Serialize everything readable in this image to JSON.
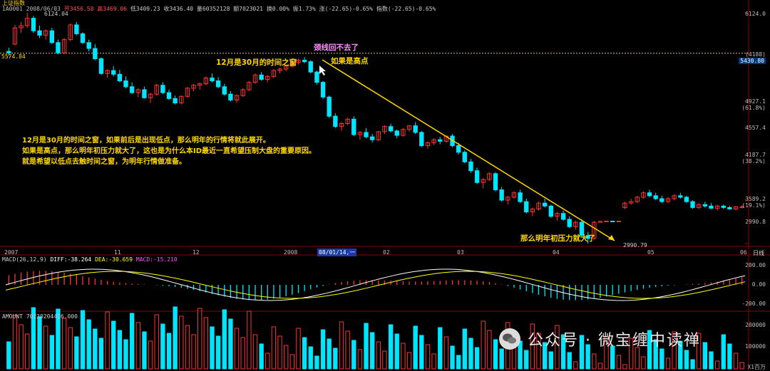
{
  "header": {
    "title": "上证指数",
    "line1": "1A0001 2008/06/03",
    "open_label": "开3456.58",
    "high_label": "高3469.06",
    "low_label": "低3409.23",
    "close_label": "收3436.40",
    "vol_label": "量60352128",
    "amount_label": "额7023021",
    "turnover_label": "换0.00%",
    "amp_label": "振1.73%",
    "change_label": "涨(-22.65)-0.65%",
    "index_label": "指数(-22.65)-0.65%"
  },
  "annotations": {
    "neckline": "颈线回不去了",
    "time_window": "12月是30月的时间之窗",
    "if_high": "如果是高点",
    "pressure": "那么明年初压力就大了",
    "note_lines": [
      "12月是30月的时间之窗，如果前后是出现低点，那么明年的行情将就此展开。",
      "如果是高点，那么明年初压力就大了，这也是为什么本ID最近一直希望压制大盘的重要原因。",
      "就是希望以低点去触时间之窗，为明年行情做准备。"
    ]
  },
  "price_axis": {
    "right_labels": [
      "6124.0",
      "(4188)",
      "5430.80",
      "4927.1",
      "(61.8%)",
      "4557.4",
      "4187.7",
      "(38.2%)",
      "3589.2",
      "(19.1%)",
      "2990.8"
    ],
    "left_label": "5574.84",
    "peak_label": "6124.04",
    "low_label": "2990.79"
  },
  "time_axis": {
    "labels": [
      "2007",
      "11",
      "12",
      "2008",
      "08/01/14,一",
      "02",
      "03",
      "04",
      "05",
      "06"
    ],
    "period": "日线"
  },
  "macd": {
    "header": "MACD(26,12,9)",
    "diff_label": "DIFF:-38.264",
    "dea_label": "DEA:-30.659",
    "macd_label": "MACD:-15.210",
    "axis": [
      "200.00",
      "0.00",
      "-200.00"
    ]
  },
  "amount": {
    "header": "AMOUNT 70230204416.000",
    "axis": [
      "200000",
      "100000"
    ],
    "unit": "X1百万"
  },
  "watermark": {
    "text": "公众号 · 微宝缠中读禅"
  },
  "colors": {
    "up": "#ff3232",
    "down": "#00e5ff",
    "dea": "#ffff00",
    "diff": "#ffffff",
    "annotation": "#ffd700",
    "trendline": "#ffd700"
  },
  "chart_data": {
    "type": "candlestick",
    "title": "上证指数",
    "period": "日线",
    "ylim": [
      2990.8,
      6124.0
    ],
    "key_levels": [
      6124.0,
      5430.8,
      4927.1,
      4557.4,
      4187.7,
      3589.2,
      2990.8
    ],
    "dashed_level": 5574.84,
    "peak": 6124.04,
    "low": 2990.79,
    "x_labels": [
      "2007",
      "11",
      "12",
      "2008",
      "08/01/14,一",
      "02",
      "03",
      "04",
      "05",
      "06"
    ],
    "ohlc_estimated": [
      [
        5600,
        5650,
        5540,
        5580
      ],
      [
        5700,
        5960,
        5680,
        5920
      ],
      [
        5920,
        6000,
        5850,
        5950
      ],
      [
        5950,
        6124,
        5920,
        6050
      ],
      [
        6050,
        6080,
        5850,
        5880
      ],
      [
        5880,
        5950,
        5780,
        5820
      ],
      [
        5820,
        5900,
        5760,
        5880
      ],
      [
        5880,
        5920,
        5700,
        5720
      ],
      [
        5720,
        5760,
        5560,
        5580
      ],
      [
        5580,
        5780,
        5560,
        5760
      ],
      [
        5760,
        5980,
        5740,
        5960
      ],
      [
        5960,
        6000,
        5820,
        5840
      ],
      [
        5840,
        5860,
        5700,
        5720
      ],
      [
        5720,
        5760,
        5600,
        5640
      ],
      [
        5640,
        5700,
        5480,
        5500
      ],
      [
        5500,
        5520,
        5280,
        5300
      ],
      [
        5300,
        5360,
        5240,
        5340
      ],
      [
        5340,
        5400,
        5260,
        5290
      ],
      [
        5290,
        5350,
        5180,
        5200
      ],
      [
        5200,
        5260,
        5100,
        5120
      ],
      [
        5120,
        5180,
        5020,
        5040
      ],
      [
        5040,
        5100,
        4980,
        5080
      ],
      [
        5080,
        5120,
        4960,
        4970
      ],
      [
        4970,
        5040,
        4900,
        5020
      ],
      [
        5020,
        5160,
        5000,
        5140
      ],
      [
        5140,
        5180,
        5020,
        5040
      ],
      [
        5040,
        5080,
        4940,
        4960
      ],
      [
        4960,
        5000,
        4880,
        4900
      ],
      [
        4900,
        5000,
        4880,
        4990
      ],
      [
        4990,
        5120,
        4970,
        5100
      ],
      [
        5100,
        5160,
        5060,
        5140
      ],
      [
        5140,
        5180,
        5080,
        5160
      ],
      [
        5160,
        5260,
        5140,
        5240
      ],
      [
        5240,
        5300,
        5180,
        5200
      ],
      [
        5200,
        5250,
        5100,
        5120
      ],
      [
        5120,
        5160,
        5000,
        5020
      ],
      [
        5020,
        5060,
        4920,
        4940
      ],
      [
        4940,
        5020,
        4900,
        5000
      ],
      [
        5000,
        5100,
        4980,
        5080
      ],
      [
        5080,
        5200,
        5060,
        5180
      ],
      [
        5180,
        5300,
        5160,
        5280
      ],
      [
        5280,
        5320,
        5200,
        5220
      ],
      [
        5220,
        5280,
        5180,
        5260
      ],
      [
        5260,
        5360,
        5240,
        5340
      ],
      [
        5340,
        5380,
        5300,
        5360
      ],
      [
        5360,
        5420,
        5330,
        5400
      ],
      [
        5400,
        5470,
        5380,
        5450
      ],
      [
        5450,
        5500,
        5420,
        5480
      ],
      [
        5480,
        5522,
        5440,
        5460
      ],
      [
        5460,
        5480,
        5300,
        5320
      ],
      [
        5320,
        5340,
        5150,
        5180
      ],
      [
        5180,
        5200,
        4950,
        4980
      ],
      [
        4980,
        5000,
        4700,
        4720
      ],
      [
        4720,
        4760,
        4560,
        4580
      ],
      [
        4580,
        4640,
        4520,
        4620
      ],
      [
        4620,
        4700,
        4600,
        4680
      ],
      [
        4680,
        4720,
        4450,
        4470
      ],
      [
        4470,
        4520,
        4400,
        4500
      ],
      [
        4500,
        4560,
        4420,
        4440
      ],
      [
        4440,
        4480,
        4360,
        4400
      ],
      [
        4400,
        4520,
        4380,
        4510
      ],
      [
        4510,
        4600,
        4480,
        4580
      ],
      [
        4580,
        4620,
        4500,
        4520
      ],
      [
        4520,
        4540,
        4420,
        4460
      ],
      [
        4460,
        4560,
        4440,
        4540
      ],
      [
        4540,
        4600,
        4510,
        4590
      ],
      [
        4590,
        4640,
        4480,
        4500
      ],
      [
        4500,
        4520,
        4300,
        4320
      ],
      [
        4320,
        4380,
        4280,
        4360
      ],
      [
        4360,
        4420,
        4330,
        4400
      ],
      [
        4400,
        4440,
        4340,
        4380
      ],
      [
        4380,
        4460,
        4360,
        4450
      ],
      [
        4450,
        4480,
        4300,
        4320
      ],
      [
        4320,
        4360,
        4200,
        4230
      ],
      [
        4230,
        4260,
        4080,
        4100
      ],
      [
        4100,
        4140,
        3950,
        3980
      ],
      [
        3980,
        4020,
        3800,
        3820
      ],
      [
        3820,
        3880,
        3740,
        3860
      ],
      [
        3860,
        3960,
        3840,
        3940
      ],
      [
        3940,
        3960,
        3700,
        3720
      ],
      [
        3720,
        3760,
        3560,
        3580
      ],
      [
        3580,
        3640,
        3520,
        3620
      ],
      [
        3620,
        3700,
        3600,
        3680
      ],
      [
        3680,
        3720,
        3540,
        3560
      ],
      [
        3560,
        3600,
        3400,
        3420
      ],
      [
        3420,
        3480,
        3360,
        3460
      ],
      [
        3460,
        3560,
        3440,
        3540
      ],
      [
        3540,
        3600,
        3480,
        3500
      ],
      [
        3500,
        3520,
        3340,
        3360
      ],
      [
        3360,
        3420,
        3300,
        3400
      ],
      [
        3400,
        3440,
        3300,
        3320
      ],
      [
        3320,
        3360,
        3200,
        3220
      ],
      [
        3220,
        3300,
        3180,
        3280
      ],
      [
        3280,
        3320,
        3080,
        3100
      ],
      [
        3100,
        3150,
        2990,
        3060
      ],
      [
        3060,
        3300,
        3040,
        3280
      ],
      [
        3280,
        3300,
        3280,
        3290
      ],
      [
        3290,
        3300,
        3290,
        3295
      ],
      [
        3295,
        3300,
        3290,
        3290
      ],
      [
        3290,
        3300,
        3290,
        3295
      ],
      [
        3480,
        3560,
        3460,
        3540
      ],
      [
        3540,
        3600,
        3520,
        3560
      ],
      [
        3560,
        3640,
        3540,
        3620
      ],
      [
        3620,
        3700,
        3600,
        3680
      ],
      [
        3680,
        3720,
        3620,
        3640
      ],
      [
        3640,
        3680,
        3580,
        3600
      ],
      [
        3600,
        3640,
        3540,
        3560
      ],
      [
        3560,
        3620,
        3540,
        3600
      ],
      [
        3600,
        3660,
        3580,
        3640
      ],
      [
        3640,
        3680,
        3600,
        3620
      ],
      [
        3620,
        3640,
        3540,
        3560
      ],
      [
        3560,
        3580,
        3460,
        3480
      ],
      [
        3480,
        3540,
        3460,
        3520
      ],
      [
        3520,
        3560,
        3480,
        3500
      ],
      [
        3500,
        3540,
        3460,
        3470
      ],
      [
        3470,
        3520,
        3440,
        3500
      ],
      [
        3500,
        3520,
        3460,
        3480
      ],
      [
        3480,
        3500,
        3450,
        3460
      ],
      [
        3460,
        3500,
        3440,
        3490
      ],
      [
        3490,
        3510,
        3470,
        3490
      ]
    ]
  }
}
